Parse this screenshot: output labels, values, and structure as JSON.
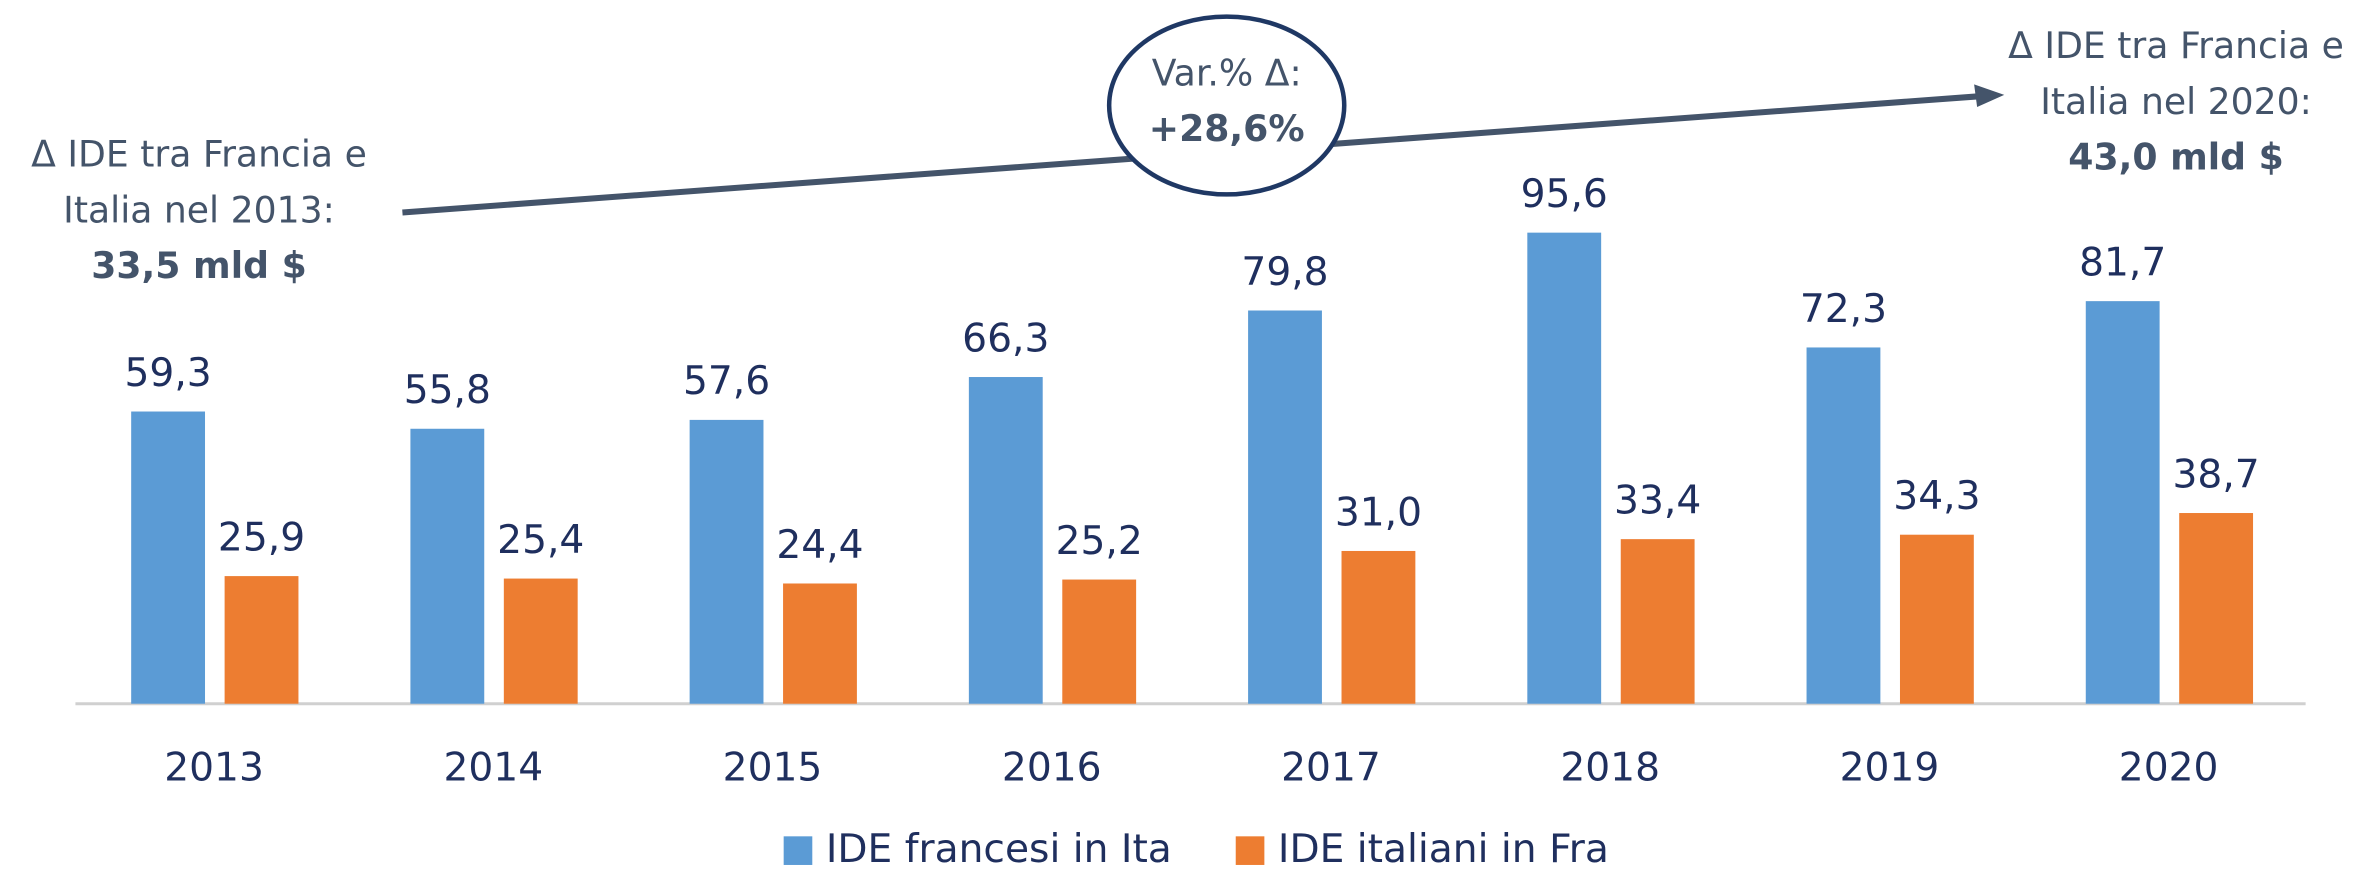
{
  "chart_data": {
    "type": "bar",
    "categories": [
      "2013",
      "2014",
      "2015",
      "2016",
      "2017",
      "2018",
      "2019",
      "2020"
    ],
    "series": [
      {
        "name": "IDE francesi in Ita",
        "color": "#5b9bd5",
        "values": [
          59.3,
          55.8,
          57.6,
          66.3,
          79.8,
          95.6,
          72.3,
          81.7
        ],
        "value_labels": [
          "59,3",
          "55,8",
          "57,6",
          "66,3",
          "79,8",
          "95,6",
          "72,3",
          "81,7"
        ]
      },
      {
        "name": "IDE italiani in Fra",
        "color": "#ed7d31",
        "values": [
          25.9,
          25.4,
          24.4,
          25.2,
          31.0,
          33.4,
          34.3,
          38.7
        ],
        "value_labels": [
          "25,9",
          "25,4",
          "24,4",
          "25,2",
          "31,0",
          "33,4",
          "34,3",
          "38,7"
        ]
      }
    ],
    "ylim": [
      0,
      100
    ],
    "legend": "bottom",
    "annotations": [
      {
        "lines": [
          "Δ IDE tra Francia e",
          "Italia nel 2013:",
          "33,5 mld $"
        ]
      },
      {
        "lines": [
          "Var.% Δ:",
          "+28,6%"
        ]
      },
      {
        "lines": [
          "Δ IDE tra Francia e",
          "Italia nel 2020:",
          "43,0 mld $"
        ]
      }
    ]
  }
}
